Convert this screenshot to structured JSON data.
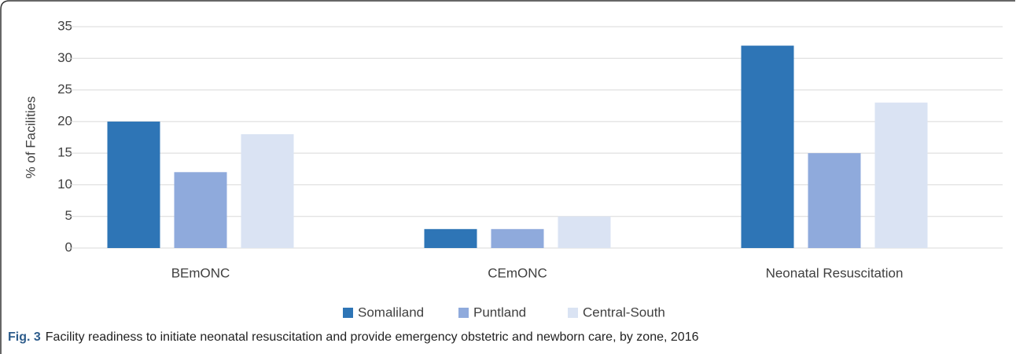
{
  "chart_data": {
    "type": "bar",
    "y_label": "% of Facilities",
    "categories": [
      "BEmONC",
      "CEmONC",
      "Neonatal Resuscitation"
    ],
    "series": [
      {
        "name": "Somaliland",
        "color": "#2e75b6",
        "values": [
          20,
          3,
          32
        ]
      },
      {
        "name": "Puntland",
        "color": "#8faadc",
        "values": [
          12,
          3,
          15
        ]
      },
      {
        "name": "Central-South",
        "color": "#dae3f3",
        "values": [
          18,
          5,
          23
        ]
      }
    ],
    "ylim": [
      0,
      35
    ],
    "yticks": [
      0,
      5,
      10,
      15,
      20,
      25,
      30,
      35
    ],
    "grid": true,
    "legend": "bottom",
    "caption_label": "Fig. 3",
    "caption": "Facility readiness to initiate neonatal resuscitation and provide emergency obstetric and newborn care, by zone, 2016"
  }
}
